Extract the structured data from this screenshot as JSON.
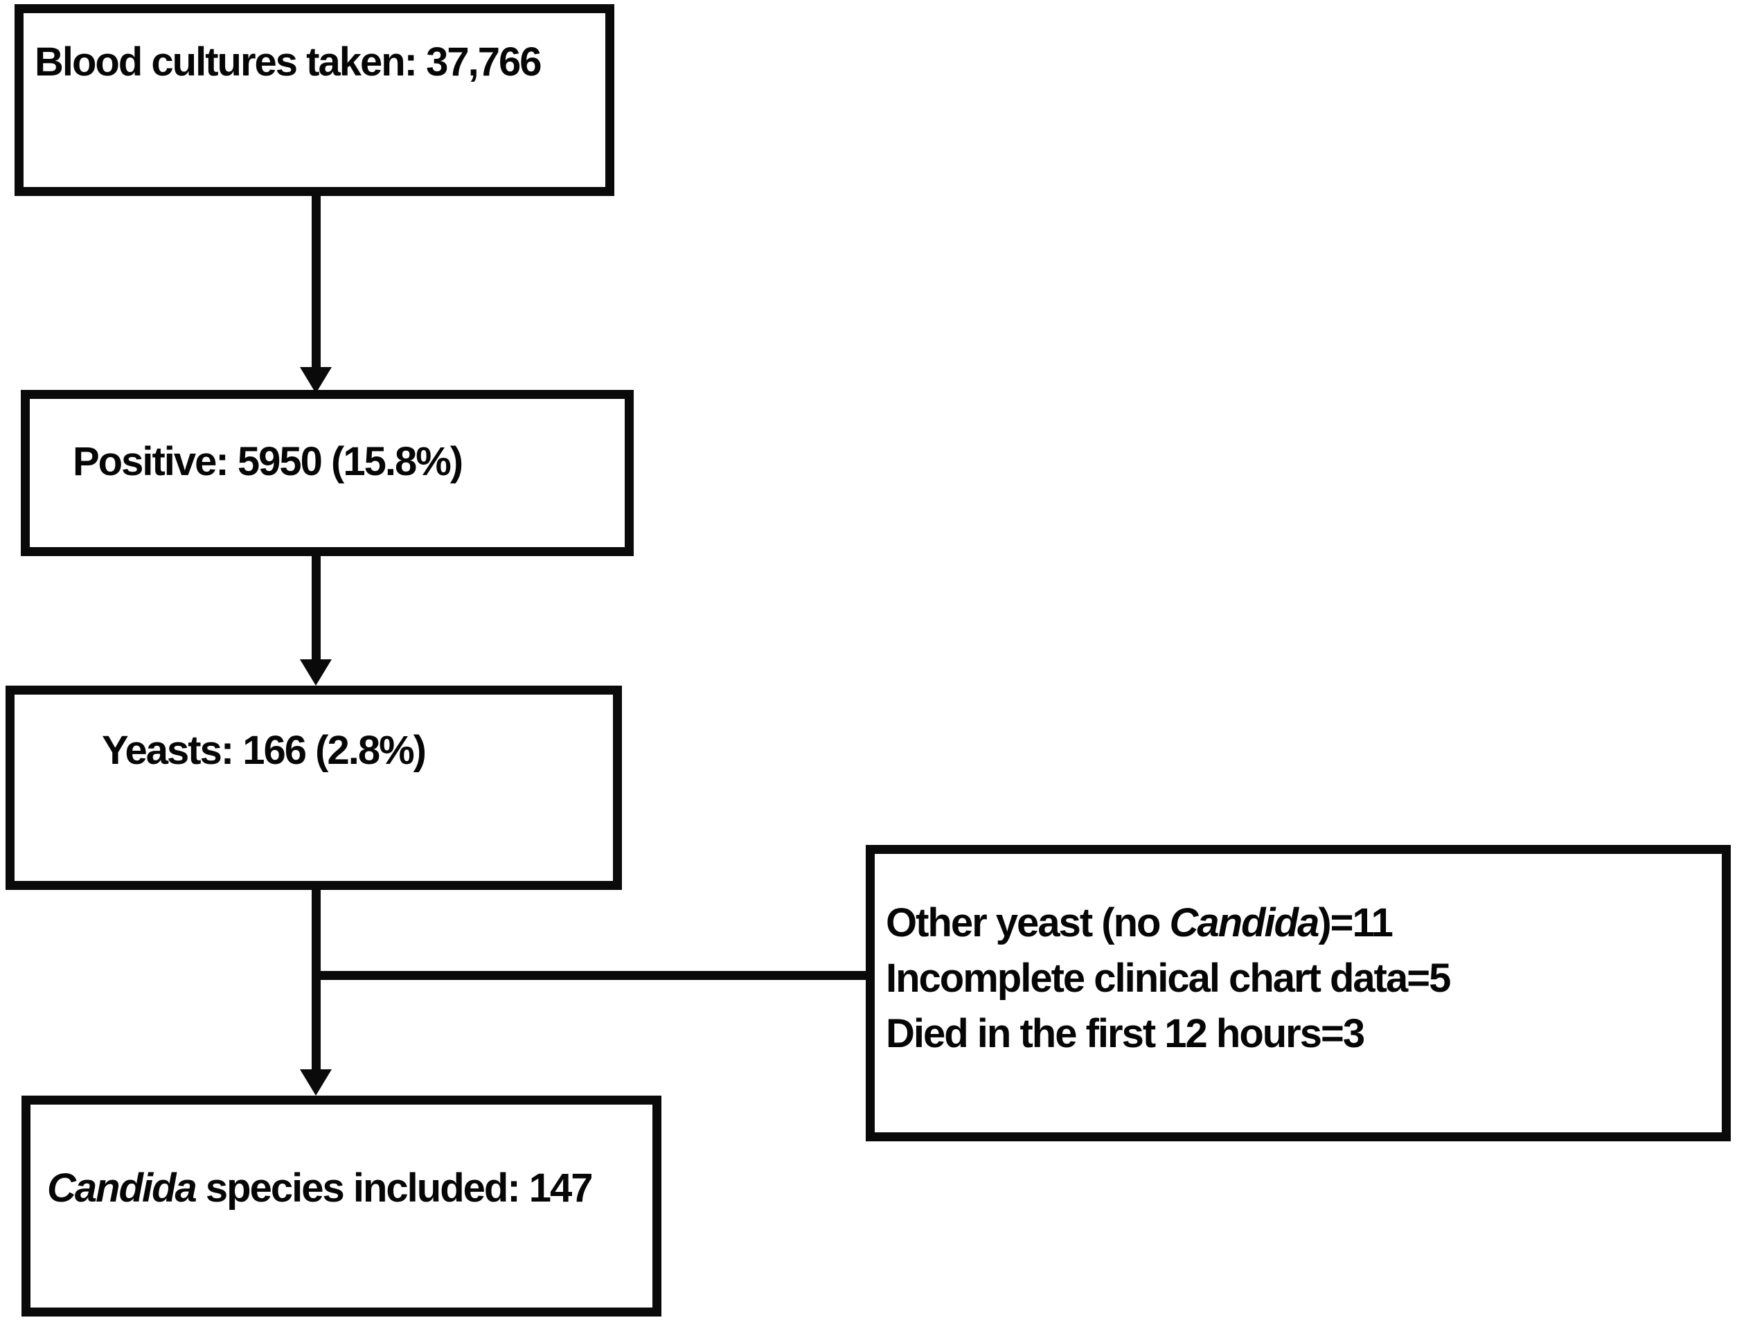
{
  "flowchart": {
    "box1": {
      "text": "Blood cultures taken: 37,766"
    },
    "box2": {
      "text": "Positive: 5950 (15.8%)"
    },
    "box3": {
      "text": "Yeasts: 166 (2.8%)"
    },
    "box4": {
      "italic": "Candida",
      "rest": " species included: 147"
    },
    "side_box": {
      "line1_pre": "Other yeast (no ",
      "line1_italic": "Candida",
      "line1_post": ")=11",
      "line2": "Incomplete clinical chart data=5",
      "line3": "Died in the first 12 hours=3"
    },
    "colors": {
      "line": "#0a0a0a",
      "background": "#ffffff"
    }
  }
}
